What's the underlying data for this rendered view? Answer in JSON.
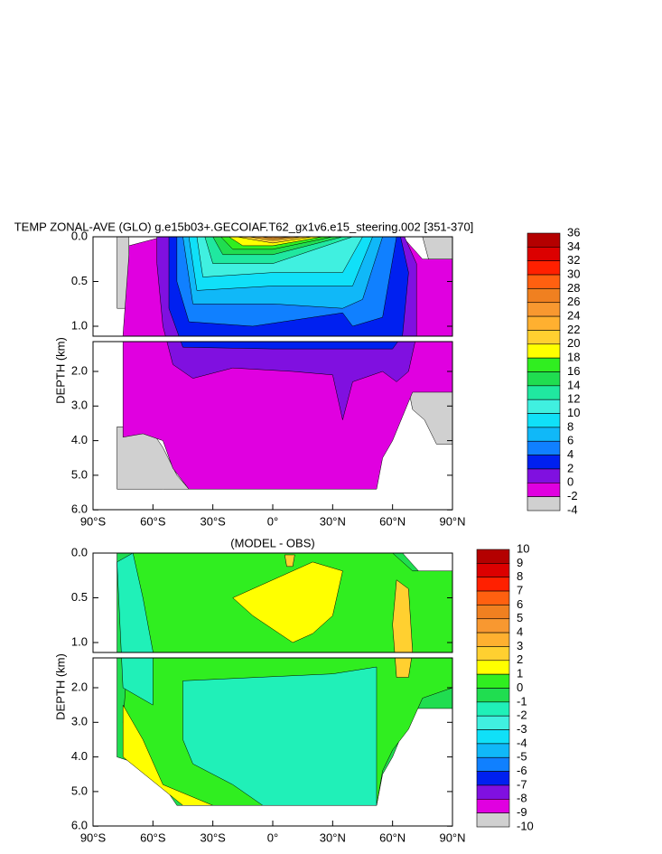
{
  "chart_data": [
    {
      "type": "contour",
      "title": "TEMP ZONAL-AVE (GLO) g.e15b03+.GECOIAF.T62_gx1v6.e15_steering.002 [351-370]",
      "ylabel": "DEPTH (km)",
      "xlim": [
        -90,
        90
      ],
      "ylim": [
        0,
        6
      ],
      "xticks": [
        {
          "value": -90,
          "label": "90°S"
        },
        {
          "value": -60,
          "label": "60°S"
        },
        {
          "value": -30,
          "label": "30°S"
        },
        {
          "value": 0,
          "label": "0°"
        },
        {
          "value": 30,
          "label": "30°N"
        },
        {
          "value": 60,
          "label": "60°N"
        },
        {
          "value": 90,
          "label": "90°N"
        }
      ],
      "yticks": [
        {
          "value": 0,
          "label": "0.0"
        },
        {
          "value": 0.5,
          "label": "0.5"
        },
        {
          "value": 1,
          "label": "1.0"
        },
        {
          "value": 2,
          "label": "2.0"
        },
        {
          "value": 3,
          "label": "3.0"
        },
        {
          "value": 4,
          "label": "4.0"
        },
        {
          "value": 5,
          "label": "5.0"
        },
        {
          "value": 6,
          "label": "6.0"
        }
      ],
      "colorbar": {
        "levels": [
          36,
          34,
          32,
          30,
          28,
          26,
          24,
          22,
          20,
          18,
          16,
          14,
          12,
          10,
          8,
          6,
          4,
          2,
          0,
          -2,
          -4
        ],
        "colors": [
          "#b40000",
          "#dc0000",
          "#ff2000",
          "#ff6010",
          "#f08020",
          "#f89830",
          "#ffb030",
          "#ffd030",
          "#ffff00",
          "#30ee20",
          "#20dd50",
          "#20e8a0",
          "#40f0e0",
          "#10e0f8",
          "#10b8f8",
          "#1080ff",
          "#0020f0",
          "#8010e0",
          "#e000e0",
          "#d0d0d0",
          "#707070"
        ]
      }
    },
    {
      "type": "contour",
      "title": "(MODEL - OBS)",
      "ylabel": "DEPTH (km)",
      "xlim": [
        -90,
        90
      ],
      "ylim": [
        0,
        6
      ],
      "xticks": [
        {
          "value": -90,
          "label": "90°S"
        },
        {
          "value": -60,
          "label": "60°S"
        },
        {
          "value": -30,
          "label": "30°S"
        },
        {
          "value": 0,
          "label": "0°"
        },
        {
          "value": 30,
          "label": "30°N"
        },
        {
          "value": 60,
          "label": "60°N"
        },
        {
          "value": 90,
          "label": "90°N"
        }
      ],
      "yticks": [
        {
          "value": 0,
          "label": "0.0"
        },
        {
          "value": 0.5,
          "label": "0.5"
        },
        {
          "value": 1,
          "label": "1.0"
        },
        {
          "value": 2,
          "label": "2.0"
        },
        {
          "value": 3,
          "label": "3.0"
        },
        {
          "value": 4,
          "label": "4.0"
        },
        {
          "value": 5,
          "label": "5.0"
        },
        {
          "value": 6,
          "label": "6.0"
        }
      ],
      "colorbar": {
        "levels": [
          10,
          9,
          8,
          7,
          6,
          5,
          4,
          3,
          2,
          1,
          0,
          -1,
          -2,
          -3,
          -4,
          -5,
          -6,
          -7,
          -8,
          -9,
          -10
        ],
        "colors": [
          "#b40000",
          "#dc0000",
          "#ff2000",
          "#ff6010",
          "#f08020",
          "#f89830",
          "#ffb030",
          "#ffd030",
          "#ffff00",
          "#30ee20",
          "#20dd50",
          "#20f0b8",
          "#40f0e0",
          "#10e0f8",
          "#10b8f8",
          "#1080ff",
          "#0020f0",
          "#8010e0",
          "#e000e0",
          "#d0d0d0",
          "#707070"
        ]
      }
    }
  ]
}
